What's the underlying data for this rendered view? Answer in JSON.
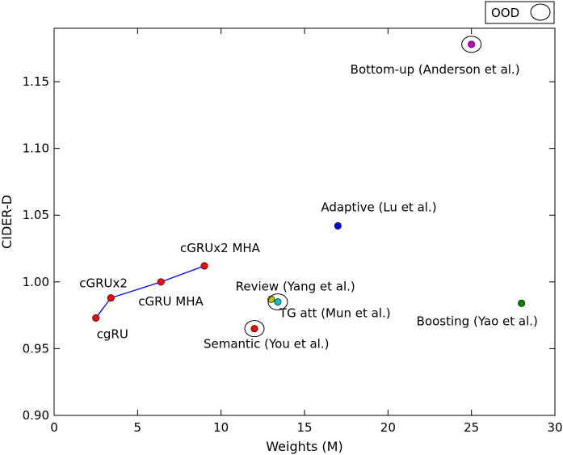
{
  "chart_data": {
    "type": "scatter",
    "xlabel": "Weights (M)",
    "ylabel": "CIDER-D",
    "xlim": [
      0,
      30
    ],
    "ylim": [
      0.9,
      1.19
    ],
    "x_ticks": [
      0,
      5,
      10,
      15,
      20,
      25,
      30
    ],
    "y_ticks": [
      0.9,
      0.95,
      1.0,
      1.05,
      1.1,
      1.15
    ],
    "y_tick_labels": [
      "0.90",
      "0.95",
      "1.00",
      "1.05",
      "1.10",
      "1.15"
    ],
    "grid": false,
    "legend": {
      "position": "top-right, outside plot",
      "label": "OOD"
    },
    "line_series": {
      "color": "#0000ff",
      "points": [
        {
          "x": 2.5,
          "y": 0.973
        },
        {
          "x": 3.4,
          "y": 0.988
        },
        {
          "x": 6.4,
          "y": 1.0
        },
        {
          "x": 9.0,
          "y": 1.012
        }
      ]
    },
    "points": [
      {
        "label": "cgRU",
        "x": 2.5,
        "y": 0.973,
        "color": "#ff0000",
        "ood": false
      },
      {
        "label": "cGRUx2",
        "x": 3.4,
        "y": 0.988,
        "color": "#ff0000",
        "ood": false
      },
      {
        "label": "cGRU MHA",
        "x": 6.4,
        "y": 1.0,
        "color": "#ff0000",
        "ood": false
      },
      {
        "label": "cGRUx2 MHA",
        "x": 9.0,
        "y": 1.012,
        "color": "#ff0000",
        "ood": false
      },
      {
        "label": "Semantic (You et al.)",
        "x": 12.0,
        "y": 0.965,
        "color": "#ff0000",
        "ood": true
      },
      {
        "label": "Review (Yang et al.)",
        "x": 13.0,
        "y": 0.987,
        "color": "#bfbf00",
        "ood": false
      },
      {
        "label": "TG att (Mun et al.)",
        "x": 13.4,
        "y": 0.985,
        "color": "#00bfbf",
        "ood": true
      },
      {
        "label": "Adaptive (Lu et al.)",
        "x": 17.0,
        "y": 1.042,
        "color": "#0000ff",
        "ood": false
      },
      {
        "label": "Bottom-up (Anderson et al.)",
        "x": 25.0,
        "y": 1.178,
        "color": "#bf00bf",
        "ood": true
      },
      {
        "label": "Boosting (Yao et al.)",
        "x": 28.0,
        "y": 0.984,
        "color": "#008000",
        "ood": false
      }
    ]
  }
}
